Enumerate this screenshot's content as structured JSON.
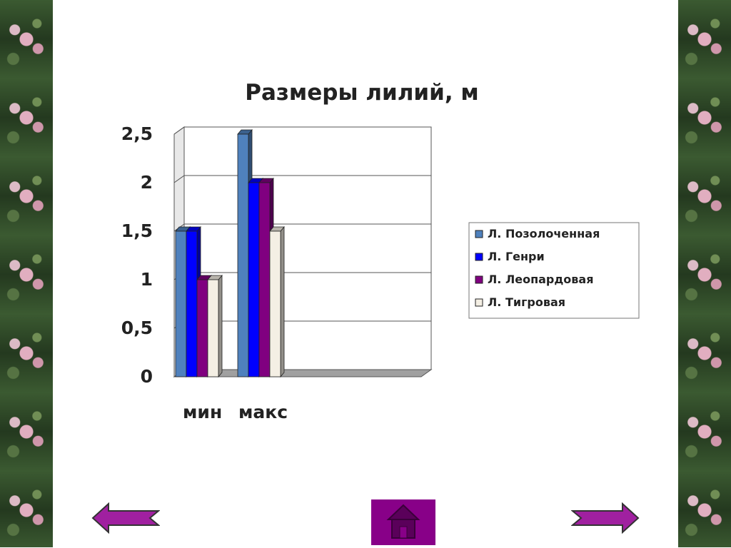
{
  "chart_data": {
    "type": "bar",
    "title": "Размеры лилий, м",
    "categories": [
      "мин",
      "макс"
    ],
    "series": [
      {
        "name": "Л. Позолоченная",
        "values": [
          1.5,
          2.5
        ],
        "color": "#4f81bd"
      },
      {
        "name": "Л. Генри",
        "values": [
          1.5,
          2.0
        ],
        "color": "#0000ff"
      },
      {
        "name": "Л. Леопардовая",
        "values": [
          1.0,
          2.0
        ],
        "color": "#800080"
      },
      {
        "name": "Л. Тигровая",
        "values": [
          1.0,
          1.5
        ],
        "color": "#f4efe4"
      }
    ],
    "y_ticks": [
      "0",
      "0,5",
      "1",
      "1,5",
      "2",
      "2,5"
    ],
    "ylim": [
      0,
      2.5
    ],
    "grid": true,
    "legend_position": "right"
  },
  "navigation": {
    "prev_icon": "arrow-left-icon",
    "next_icon": "arrow-right-icon",
    "home_icon": "home-icon"
  }
}
